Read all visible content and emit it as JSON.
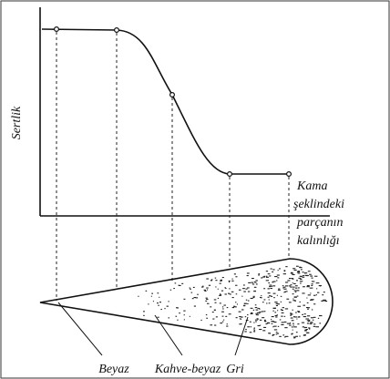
{
  "y_axis_label": "Sertlik",
  "x_axis_label": [
    "Kama",
    "şeklindeki",
    "parçanın",
    "kalınlığı"
  ],
  "zones": [
    "Beyaz",
    "Kahve-beyaz",
    "Gri"
  ]
}
